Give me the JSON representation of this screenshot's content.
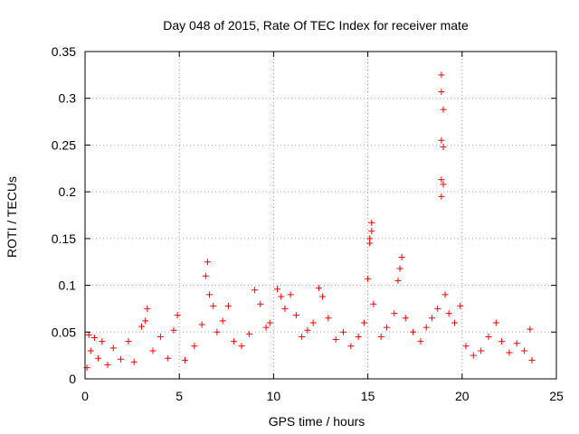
{
  "chart_data": {
    "type": "scatter",
    "title": "Day 048 of 2015, Rate Of TEC Index for receiver mate",
    "xlabel": "GPS time / hours",
    "ylabel": "ROTI / TECUs",
    "xlim": [
      0,
      25
    ],
    "ylim": [
      0,
      0.35
    ],
    "x_ticks": [
      "0",
      "5",
      "10",
      "15",
      "20",
      "25"
    ],
    "y_ticks": [
      "0",
      "0.05",
      "0.1",
      "0.15",
      "0.2",
      "0.25",
      "0.3",
      "0.35"
    ],
    "grid": true,
    "marker": "+",
    "color": "#ff0000",
    "series": [
      {
        "points": [
          [
            0.1,
            0.012
          ],
          [
            0.2,
            0.047
          ],
          [
            0.3,
            0.03
          ],
          [
            0.5,
            0.044
          ],
          [
            0.7,
            0.022
          ],
          [
            0.9,
            0.04
          ],
          [
            1.2,
            0.015
          ],
          [
            1.5,
            0.033
          ],
          [
            1.9,
            0.021
          ],
          [
            2.3,
            0.04
          ],
          [
            2.6,
            0.018
          ],
          [
            3.0,
            0.056
          ],
          [
            3.2,
            0.062
          ],
          [
            3.3,
            0.075
          ],
          [
            3.6,
            0.03
          ],
          [
            4.0,
            0.045
          ],
          [
            4.4,
            0.022
          ],
          [
            4.7,
            0.052
          ],
          [
            4.9,
            0.068
          ],
          [
            5.3,
            0.02
          ],
          [
            5.8,
            0.035
          ],
          [
            6.2,
            0.058
          ],
          [
            6.4,
            0.11
          ],
          [
            6.5,
            0.125
          ],
          [
            6.6,
            0.09
          ],
          [
            6.8,
            0.078
          ],
          [
            7.0,
            0.05
          ],
          [
            7.3,
            0.062
          ],
          [
            7.6,
            0.078
          ],
          [
            7.9,
            0.04
          ],
          [
            8.3,
            0.035
          ],
          [
            8.7,
            0.048
          ],
          [
            9.0,
            0.095
          ],
          [
            9.3,
            0.08
          ],
          [
            9.6,
            0.055
          ],
          [
            9.8,
            0.06
          ],
          [
            10.2,
            0.096
          ],
          [
            10.4,
            0.088
          ],
          [
            10.6,
            0.075
          ],
          [
            10.9,
            0.09
          ],
          [
            11.2,
            0.068
          ],
          [
            11.5,
            0.045
          ],
          [
            11.8,
            0.052
          ],
          [
            12.1,
            0.06
          ],
          [
            12.4,
            0.097
          ],
          [
            12.6,
            0.088
          ],
          [
            12.9,
            0.065
          ],
          [
            13.3,
            0.042
          ],
          [
            13.7,
            0.05
          ],
          [
            14.1,
            0.035
          ],
          [
            14.5,
            0.045
          ],
          [
            14.8,
            0.06
          ],
          [
            15.0,
            0.107
          ],
          [
            15.1,
            0.145
          ],
          [
            15.1,
            0.15
          ],
          [
            15.2,
            0.158
          ],
          [
            15.2,
            0.167
          ],
          [
            15.3,
            0.08
          ],
          [
            15.7,
            0.045
          ],
          [
            16.0,
            0.055
          ],
          [
            16.4,
            0.07
          ],
          [
            16.6,
            0.105
          ],
          [
            16.7,
            0.118
          ],
          [
            16.8,
            0.13
          ],
          [
            17.0,
            0.065
          ],
          [
            17.4,
            0.05
          ],
          [
            17.8,
            0.04
          ],
          [
            18.1,
            0.055
          ],
          [
            18.4,
            0.065
          ],
          [
            18.7,
            0.075
          ],
          [
            18.9,
            0.325
          ],
          [
            18.9,
            0.307
          ],
          [
            19.0,
            0.288
          ],
          [
            18.9,
            0.255
          ],
          [
            19.0,
            0.248
          ],
          [
            18.9,
            0.213
          ],
          [
            19.0,
            0.208
          ],
          [
            18.9,
            0.195
          ],
          [
            19.1,
            0.09
          ],
          [
            19.3,
            0.07
          ],
          [
            19.6,
            0.06
          ],
          [
            19.9,
            0.078
          ],
          [
            20.2,
            0.035
          ],
          [
            20.6,
            0.025
          ],
          [
            21.0,
            0.03
          ],
          [
            21.4,
            0.045
          ],
          [
            21.8,
            0.06
          ],
          [
            22.1,
            0.04
          ],
          [
            22.5,
            0.028
          ],
          [
            22.9,
            0.038
          ],
          [
            23.3,
            0.03
          ],
          [
            23.6,
            0.053
          ],
          [
            23.7,
            0.02
          ]
        ]
      }
    ]
  }
}
